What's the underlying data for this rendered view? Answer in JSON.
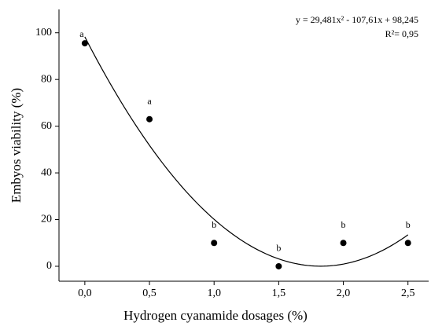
{
  "chart_data": {
    "type": "scatter",
    "x_label": "Hydrogen cyanamide dosages (%)",
    "y_label": "Embyos viability (%)",
    "x": [
      0,
      0.5,
      1.0,
      1.5,
      2.0,
      2.5
    ],
    "values": [
      95.5,
      63,
      10,
      0,
      10,
      10
    ],
    "point_labels": [
      "a",
      "a",
      "b",
      "b",
      "b",
      "b"
    ],
    "color": "#000000",
    "trendline": {
      "equation": "y = 29,481x² - 107,61x + 98,245",
      "r2_label": "R²= 0,95",
      "coefficients": [
        29.481,
        -107.61,
        98.245
      ],
      "r2": 0.95
    },
    "xlim": [
      -0.2,
      2.66
    ],
    "ylim": [
      -6.4,
      110
    ],
    "xticks": [
      {
        "value": 0,
        "label": "0,0"
      },
      {
        "value": 0.5,
        "label": "0,5"
      },
      {
        "value": 1.0,
        "label": "1,0"
      },
      {
        "value": 1.5,
        "label": "1,5"
      },
      {
        "value": 2.0,
        "label": "2,0"
      },
      {
        "value": 2.5,
        "label": "2,5"
      }
    ],
    "yticks": [
      0,
      20,
      40,
      60,
      80,
      100
    ]
  }
}
